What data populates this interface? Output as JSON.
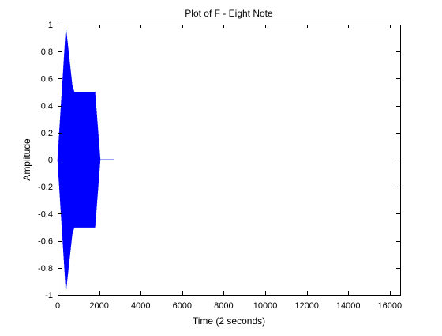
{
  "chart_data": {
    "type": "line",
    "title": "Plot of F - Eight Note",
    "xlabel": "Time (2 seconds)",
    "ylabel": "Amplitude",
    "xlim": [
      0,
      16500
    ],
    "ylim": [
      -1,
      1
    ],
    "xticks": [
      0,
      2000,
      4000,
      6000,
      8000,
      10000,
      12000,
      14000,
      16000
    ],
    "yticks": [
      -1,
      -0.8,
      -0.6,
      -0.4,
      -0.2,
      0,
      0.2,
      0.4,
      0.6,
      0.8,
      1
    ],
    "grid": false,
    "legend": "none",
    "series": [
      {
        "color": "#0000ff",
        "envelope": [
          {
            "x": 0,
            "amplitude": 0
          },
          {
            "x": 400,
            "amplitude": 0.97
          },
          {
            "x": 700,
            "amplitude": 0.55
          },
          {
            "x": 800,
            "amplitude": 0.5
          },
          {
            "x": 1800,
            "amplitude": 0.5
          },
          {
            "x": 2050,
            "amplitude": 0
          },
          {
            "x": 2700,
            "amplitude": 0
          }
        ]
      }
    ]
  }
}
